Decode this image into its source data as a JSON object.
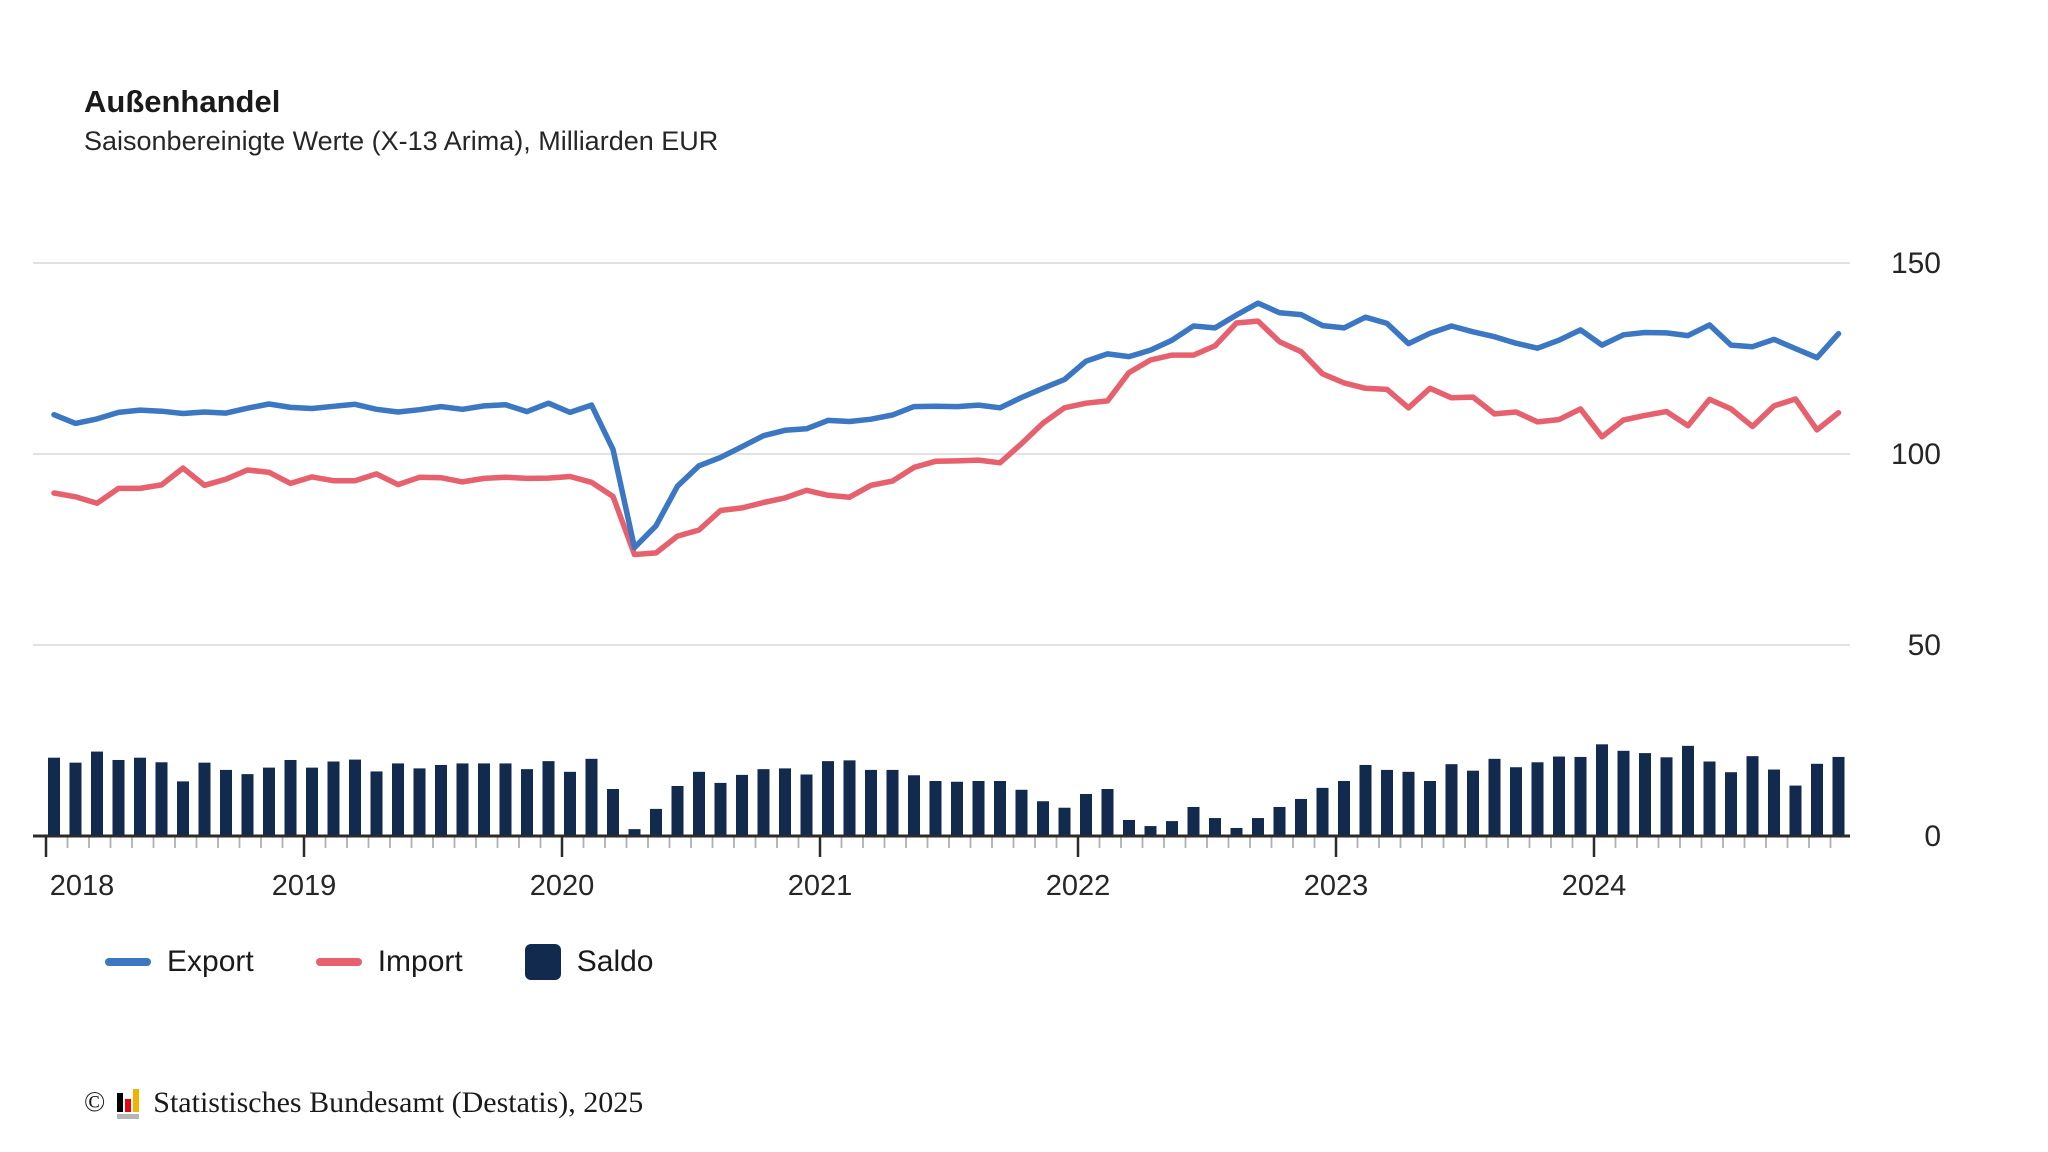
{
  "header": {
    "title": "Außenhandel",
    "subtitle": "Saisonbereinigte Werte (X-13 Arima), Milliarden EUR"
  },
  "chart_data": {
    "type": "combo-line-bar",
    "title": "Außenhandel",
    "subtitle": "Saisonbereinigte Werte (X-13 Arima), Milliarden EUR",
    "unit": "Milliarden EUR",
    "x_axis": {
      "frequency": "monthly",
      "start": "2018-01",
      "end": "2024-12",
      "points": 84,
      "visible_tick_labels": [
        "2018",
        "2019",
        "2020",
        "2021",
        "2022",
        "2023",
        "2024"
      ]
    },
    "y_axis": {
      "ticks": [
        0,
        50,
        100,
        150
      ],
      "range": [
        0,
        150
      ],
      "side": "right",
      "grid": true
    },
    "legend_position": "bottom",
    "series": [
      {
        "name": "Export",
        "type": "line",
        "color": "#3b77c2",
        "values": [
          110.3,
          108.0,
          109.2,
          110.9,
          111.5,
          111.2,
          110.6,
          111.0,
          110.7,
          112.0,
          113.1,
          112.2,
          111.9,
          112.5,
          113.0,
          111.7,
          111.0,
          111.6,
          112.4,
          111.7,
          112.6,
          112.9,
          111.1,
          113.3,
          110.9,
          112.8,
          101.2,
          75.5,
          81.2,
          91.6,
          96.9,
          99.1,
          101.9,
          104.8,
          106.2,
          106.6,
          108.8,
          108.5,
          109.1,
          110.2,
          112.4,
          112.5,
          112.4,
          112.8,
          112.1,
          114.8,
          117.2,
          119.5,
          124.3,
          126.2,
          125.5,
          127.2,
          129.8,
          133.5,
          133.0,
          136.4,
          139.5,
          137.0,
          136.5,
          133.6,
          133.0,
          135.8,
          134.2,
          128.9,
          131.6,
          133.5,
          132.0,
          130.7,
          129.0,
          127.7,
          129.8,
          132.5,
          128.5,
          131.2,
          131.8,
          131.7,
          131.0,
          133.8,
          128.5,
          128.1,
          130.0,
          127.6,
          125.2,
          131.5
        ]
      },
      {
        "name": "Import",
        "type": "line",
        "color": "#e7606e",
        "values": [
          89.8,
          88.8,
          87.1,
          91.0,
          91.0,
          91.9,
          96.3,
          91.8,
          93.4,
          95.8,
          95.2,
          92.3,
          94.0,
          93.0,
          93.0,
          94.8,
          92.0,
          93.9,
          93.8,
          92.7,
          93.6,
          93.9,
          93.6,
          93.7,
          94.1,
          92.6,
          88.9,
          73.7,
          74.1,
          78.5,
          80.1,
          85.2,
          85.9,
          87.3,
          88.5,
          90.5,
          89.2,
          88.7,
          91.8,
          92.9,
          96.5,
          98.1,
          98.2,
          98.4,
          97.7,
          102.7,
          108.1,
          112.1,
          113.3,
          113.9,
          121.3,
          124.6,
          125.9,
          125.9,
          128.3,
          134.3,
          134.8,
          129.4,
          126.8,
          121.0,
          118.6,
          117.2,
          116.9,
          112.1,
          117.2,
          114.7,
          114.9,
          110.5,
          111.0,
          108.4,
          109.0,
          111.8,
          104.5,
          108.9,
          110.1,
          111.1,
          107.4,
          114.3,
          111.8,
          107.2,
          112.6,
          114.4,
          106.3,
          110.8
        ]
      },
      {
        "name": "Saldo",
        "type": "bar",
        "color": "#112a4e",
        "values": [
          20.5,
          19.2,
          22.1,
          19.9,
          20.5,
          19.3,
          14.3,
          19.2,
          17.3,
          16.2,
          17.9,
          19.9,
          17.9,
          19.5,
          20.0,
          16.9,
          19.0,
          17.7,
          18.6,
          19.0,
          19.0,
          19.0,
          17.5,
          19.6,
          16.8,
          20.2,
          12.3,
          1.8,
          7.1,
          13.1,
          16.8,
          13.9,
          16.0,
          17.5,
          17.7,
          16.1,
          19.6,
          19.8,
          17.3,
          17.3,
          15.9,
          14.4,
          14.2,
          14.4,
          14.4,
          12.1,
          9.1,
          7.4,
          11.0,
          12.3,
          4.2,
          2.6,
          3.9,
          7.6,
          4.7,
          2.1,
          4.7,
          7.6,
          9.7,
          12.6,
          14.4,
          18.6,
          17.3,
          16.8,
          14.4,
          18.8,
          17.1,
          20.2,
          18.0,
          19.3,
          20.8,
          20.7,
          24.0,
          22.3,
          21.7,
          20.6,
          23.6,
          19.5,
          16.7,
          20.9,
          17.4,
          13.2,
          18.9,
          20.7
        ]
      }
    ],
    "colors": {
      "grid": "#d9d9d9",
      "axis": "#2b2b2b",
      "minor_tick": "#b0b0b0",
      "text": "#262626"
    }
  },
  "legend": {
    "export_label": "Export",
    "import_label": "Import",
    "saldo_label": "Saldo"
  },
  "footer": {
    "copyright": "©",
    "text": "Statistisches Bundesamt (Destatis), 2025"
  }
}
